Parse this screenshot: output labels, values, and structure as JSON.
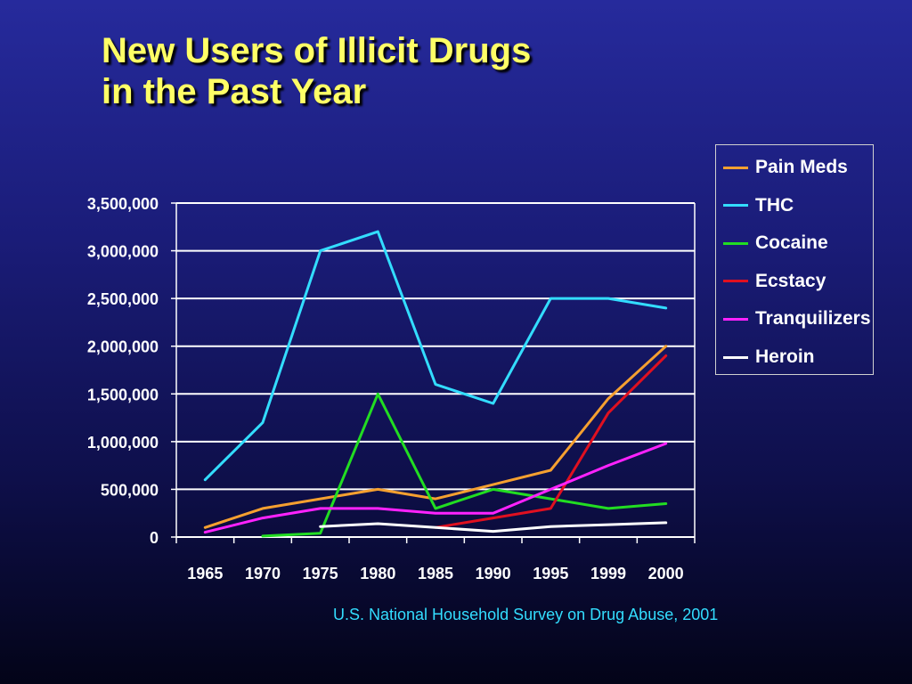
{
  "slide": {
    "title_line1": "New Users of Illicit Drugs",
    "title_line2": "in the Past Year",
    "source": "U.S. National Household Survey on Drug Abuse, 2001"
  },
  "chart_data": {
    "type": "line",
    "categories": [
      "1965",
      "1970",
      "1975",
      "1980",
      "1985",
      "1990",
      "1995",
      "1999",
      "2000"
    ],
    "ylim": [
      0,
      3500000
    ],
    "yticks": [
      0,
      500000,
      1000000,
      1500000,
      2000000,
      2500000,
      3000000,
      3500000
    ],
    "ytick_labels": [
      "0",
      "500,000",
      "1,000,000",
      "1,500,000",
      "2,000,000",
      "2,500,000",
      "3,000,000",
      "3,500,000"
    ],
    "grid": "horizontal",
    "legend_position": "top-right",
    "series": [
      {
        "name": "Pain Meds",
        "color": "#f5a030",
        "values": [
          100000,
          300000,
          400000,
          500000,
          400000,
          550000,
          700000,
          1450000,
          2000000
        ]
      },
      {
        "name": "THC",
        "color": "#33ddff",
        "values": [
          600000,
          1200000,
          3000000,
          3200000,
          1600000,
          1400000,
          2500000,
          2500000,
          2400000
        ]
      },
      {
        "name": "Cocaine",
        "color": "#22dd22",
        "values": [
          null,
          10000,
          40000,
          1500000,
          300000,
          500000,
          400000,
          300000,
          350000
        ]
      },
      {
        "name": "Ecstacy",
        "color": "#e01020",
        "values": [
          null,
          null,
          null,
          null,
          100000,
          200000,
          300000,
          1300000,
          1900000
        ]
      },
      {
        "name": "Tranquilizers",
        "color": "#ff22ff",
        "values": [
          50000,
          200000,
          300000,
          300000,
          250000,
          250000,
          500000,
          750000,
          980000
        ]
      },
      {
        "name": "Heroin",
        "color": "#ffffff",
        "values": [
          null,
          null,
          110000,
          140000,
          100000,
          60000,
          110000,
          130000,
          150000
        ]
      }
    ]
  }
}
